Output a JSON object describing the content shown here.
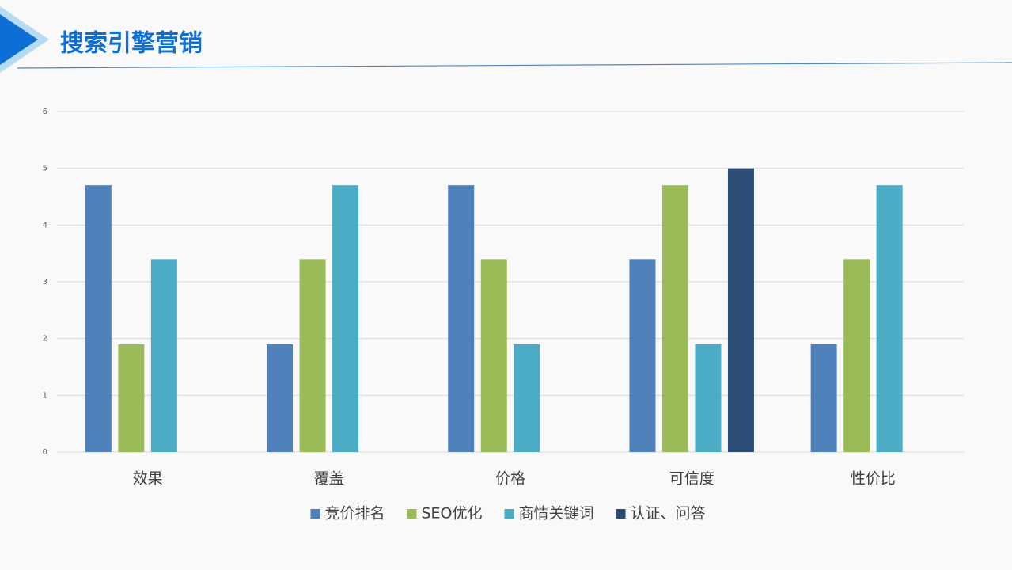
{
  "chart_data": {
    "type": "bar",
    "title": "搜索引擎营销",
    "categories": [
      "效果",
      "覆盖",
      "价格",
      "可信度",
      "性价比"
    ],
    "series": [
      {
        "name": "竞价排名",
        "color": "#4f81bd",
        "values": [
          4.7,
          1.9,
          4.7,
          3.4,
          1.9
        ]
      },
      {
        "name": "SEO优化",
        "color": "#9bbb59",
        "values": [
          1.9,
          3.4,
          3.4,
          4.7,
          3.4
        ]
      },
      {
        "name": "商情关键词",
        "color": "#4bacc6",
        "values": [
          3.4,
          4.7,
          1.9,
          1.9,
          4.7
        ]
      },
      {
        "name": "认证、问答",
        "color": "#2c4d75",
        "values": [
          null,
          null,
          null,
          5,
          null
        ]
      }
    ],
    "ylim": [
      0,
      6
    ],
    "yticks": [
      0,
      1,
      2,
      3,
      4,
      5,
      6
    ],
    "grid": true,
    "legend": "bottom"
  }
}
